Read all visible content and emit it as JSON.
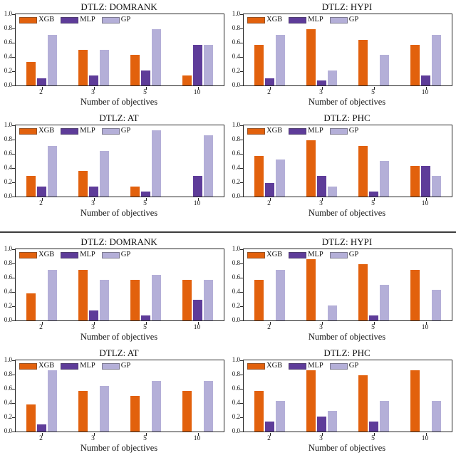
{
  "figure": {
    "xlabel": "Number of objectives",
    "categories": [
      "2",
      "3",
      "5",
      "10"
    ],
    "ytick_labels": [
      "1.0",
      "0.8",
      "0.6",
      "0.4",
      "0.2",
      "0.0"
    ],
    "legend_labels": [
      "XGB",
      "MLP",
      "GP"
    ],
    "colors": {
      "XGB": "#e2610d",
      "MLP": "#5e3c99",
      "GP": "#b4afd8",
      "axis": "#252525",
      "divider": "#3d3d3d"
    }
  },
  "chart_data": [
    {
      "half": "top",
      "row": 0,
      "col": 0,
      "type": "bar",
      "title": "DTLZ: DOMRANK",
      "xlabel": "Number of objectives",
      "categories": [
        "2",
        "3",
        "5",
        "10"
      ],
      "ylim": [
        0.0,
        1.0
      ],
      "grid": false,
      "legend_position": "upper left",
      "series": [
        {
          "name": "XGB",
          "values": [
            0.33,
            0.5,
            0.43,
            0.14
          ]
        },
        {
          "name": "MLP",
          "values": [
            0.1,
            0.14,
            0.21,
            0.57
          ]
        },
        {
          "name": "GP",
          "values": [
            0.71,
            0.5,
            0.79,
            0.57
          ]
        }
      ]
    },
    {
      "half": "top",
      "row": 0,
      "col": 1,
      "type": "bar",
      "title": "DTLZ: HYPI",
      "xlabel": "Number of objectives",
      "categories": [
        "2",
        "3",
        "5",
        "10"
      ],
      "ylim": [
        0.0,
        1.0
      ],
      "grid": false,
      "legend_position": "upper left",
      "series": [
        {
          "name": "XGB",
          "values": [
            0.57,
            0.79,
            0.64,
            0.57
          ]
        },
        {
          "name": "MLP",
          "values": [
            0.1,
            0.07,
            0.0,
            0.14
          ]
        },
        {
          "name": "GP",
          "values": [
            0.71,
            0.21,
            0.43,
            0.71
          ]
        }
      ]
    },
    {
      "half": "top",
      "row": 1,
      "col": 0,
      "type": "bar",
      "title": "DTLZ: AT",
      "xlabel": "Number of objectives",
      "categories": [
        "2",
        "3",
        "5",
        "10"
      ],
      "ylim": [
        0.0,
        1.0
      ],
      "grid": false,
      "legend_position": "upper left",
      "series": [
        {
          "name": "XGB",
          "values": [
            0.29,
            0.36,
            0.14,
            0.0
          ]
        },
        {
          "name": "MLP",
          "values": [
            0.14,
            0.14,
            0.07,
            0.29
          ]
        },
        {
          "name": "GP",
          "values": [
            0.71,
            0.64,
            0.93,
            0.86
          ]
        }
      ]
    },
    {
      "half": "top",
      "row": 1,
      "col": 1,
      "type": "bar",
      "title": "DTLZ: PHC",
      "xlabel": "Number of objectives",
      "categories": [
        "2",
        "3",
        "5",
        "10"
      ],
      "ylim": [
        0.0,
        1.0
      ],
      "grid": false,
      "legend_position": "upper left",
      "series": [
        {
          "name": "XGB",
          "values": [
            0.57,
            0.79,
            0.71,
            0.43
          ]
        },
        {
          "name": "MLP",
          "values": [
            0.19,
            0.29,
            0.07,
            0.43
          ]
        },
        {
          "name": "GP",
          "values": [
            0.52,
            0.14,
            0.5,
            0.29
          ]
        }
      ]
    },
    {
      "half": "bottom",
      "row": 0,
      "col": 0,
      "type": "bar",
      "title": "DTLZ: DOMRANK",
      "xlabel": "Number of objectives",
      "categories": [
        "2",
        "3",
        "5",
        "10"
      ],
      "ylim": [
        0.0,
        1.0
      ],
      "grid": false,
      "legend_position": "upper left",
      "series": [
        {
          "name": "XGB",
          "values": [
            0.38,
            0.71,
            0.57,
            0.57
          ]
        },
        {
          "name": "MLP",
          "values": [
            0.0,
            0.14,
            0.07,
            0.29
          ]
        },
        {
          "name": "GP",
          "values": [
            0.71,
            0.57,
            0.64,
            0.57
          ]
        }
      ]
    },
    {
      "half": "bottom",
      "row": 0,
      "col": 1,
      "type": "bar",
      "title": "DTLZ: HYPI",
      "xlabel": "Number of objectives",
      "categories": [
        "2",
        "3",
        "5",
        "10"
      ],
      "ylim": [
        0.0,
        1.0
      ],
      "grid": false,
      "legend_position": "upper left",
      "series": [
        {
          "name": "XGB",
          "values": [
            0.57,
            0.86,
            0.79,
            0.71
          ]
        },
        {
          "name": "MLP",
          "values": [
            0.0,
            0.0,
            0.07,
            0.0
          ]
        },
        {
          "name": "GP",
          "values": [
            0.71,
            0.21,
            0.5,
            0.43
          ]
        }
      ]
    },
    {
      "half": "bottom",
      "row": 1,
      "col": 0,
      "type": "bar",
      "title": "DTLZ: AT",
      "xlabel": "Number of objectives",
      "categories": [
        "2",
        "3",
        "5",
        "10"
      ],
      "ylim": [
        0.0,
        1.0
      ],
      "grid": false,
      "legend_position": "upper left",
      "series": [
        {
          "name": "XGB",
          "values": [
            0.38,
            0.57,
            0.5,
            0.57
          ]
        },
        {
          "name": "MLP",
          "values": [
            0.1,
            0.0,
            0.0,
            0.0
          ]
        },
        {
          "name": "GP",
          "values": [
            0.86,
            0.64,
            0.71,
            0.71
          ]
        }
      ]
    },
    {
      "half": "bottom",
      "row": 1,
      "col": 1,
      "type": "bar",
      "title": "DTLZ: PHC",
      "xlabel": "Number of objectives",
      "categories": [
        "2",
        "3",
        "5",
        "10"
      ],
      "ylim": [
        0.0,
        1.0
      ],
      "grid": false,
      "legend_position": "upper left",
      "series": [
        {
          "name": "XGB",
          "values": [
            0.57,
            0.86,
            0.79,
            0.86
          ]
        },
        {
          "name": "MLP",
          "values": [
            0.14,
            0.21,
            0.14,
            0.0
          ]
        },
        {
          "name": "GP",
          "values": [
            0.43,
            0.29,
            0.43,
            0.43
          ]
        }
      ]
    }
  ]
}
